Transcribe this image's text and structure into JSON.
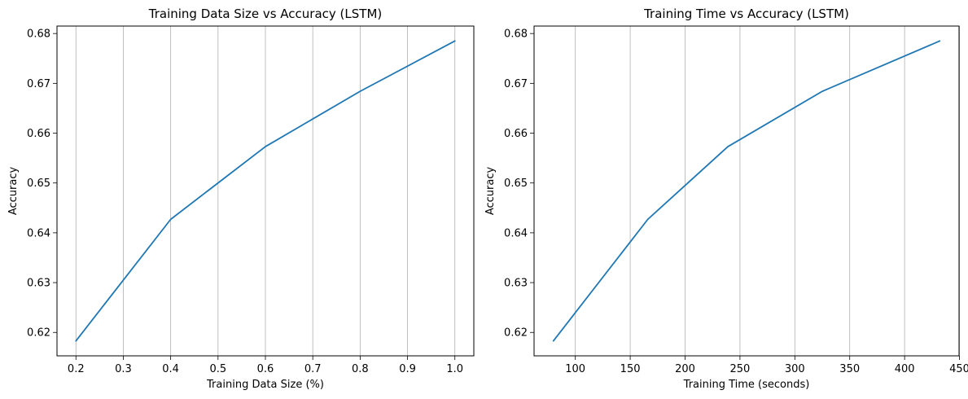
{
  "chart_data": [
    {
      "type": "line",
      "title": "Training Data Size vs Accuracy (LSTM)",
      "xlabel": "Training Data Size (%)",
      "ylabel": "Accuracy",
      "x": [
        0.2,
        0.4,
        0.6,
        0.8,
        1.0
      ],
      "series": [
        {
          "values": [
            0.6183,
            0.6427,
            0.6573,
            0.6684,
            0.6785
          ],
          "color": "#1f77b4"
        }
      ],
      "xlim": [
        0.16,
        1.04
      ],
      "ylim": [
        0.6153,
        0.6815
      ],
      "xticks": [
        {
          "value": 0.2,
          "label": "0.2"
        },
        {
          "value": 0.3,
          "label": "0.3"
        },
        {
          "value": 0.4,
          "label": "0.4"
        },
        {
          "value": 0.5,
          "label": "0.5"
        },
        {
          "value": 0.6,
          "label": "0.6"
        },
        {
          "value": 0.7,
          "label": "0.7"
        },
        {
          "value": 0.8,
          "label": "0.8"
        },
        {
          "value": 0.9,
          "label": "0.9"
        },
        {
          "value": 1.0,
          "label": "1.0"
        }
      ],
      "yticks": [
        {
          "value": 0.62,
          "label": "0.62"
        },
        {
          "value": 0.63,
          "label": "0.63"
        },
        {
          "value": 0.64,
          "label": "0.64"
        },
        {
          "value": 0.65,
          "label": "0.65"
        },
        {
          "value": 0.66,
          "label": "0.66"
        },
        {
          "value": 0.67,
          "label": "0.67"
        },
        {
          "value": 0.68,
          "label": "0.68"
        }
      ],
      "grid": "x-only",
      "legend": "none"
    },
    {
      "type": "line",
      "title": "Training Time vs Accuracy (LSTM)",
      "xlabel": "Training Time (seconds)",
      "ylabel": "Accuracy",
      "x": [
        80,
        166,
        239,
        325,
        432
      ],
      "series": [
        {
          "values": [
            0.6183,
            0.6427,
            0.6573,
            0.6684,
            0.6785
          ],
          "color": "#1f77b4"
        }
      ],
      "xlim": [
        62.4,
        449.6
      ],
      "ylim": [
        0.6153,
        0.6815
      ],
      "xticks": [
        {
          "value": 100,
          "label": "100"
        },
        {
          "value": 150,
          "label": "150"
        },
        {
          "value": 200,
          "label": "200"
        },
        {
          "value": 250,
          "label": "250"
        },
        {
          "value": 300,
          "label": "300"
        },
        {
          "value": 350,
          "label": "350"
        },
        {
          "value": 400,
          "label": "400"
        },
        {
          "value": 450,
          "label": "450"
        }
      ],
      "yticks": [
        {
          "value": 0.62,
          "label": "0.62"
        },
        {
          "value": 0.63,
          "label": "0.63"
        },
        {
          "value": 0.64,
          "label": "0.64"
        },
        {
          "value": 0.65,
          "label": "0.65"
        },
        {
          "value": 0.66,
          "label": "0.66"
        },
        {
          "value": 0.67,
          "label": "0.67"
        },
        {
          "value": 0.68,
          "label": "0.68"
        }
      ],
      "grid": "x-only",
      "legend": "none"
    }
  ]
}
